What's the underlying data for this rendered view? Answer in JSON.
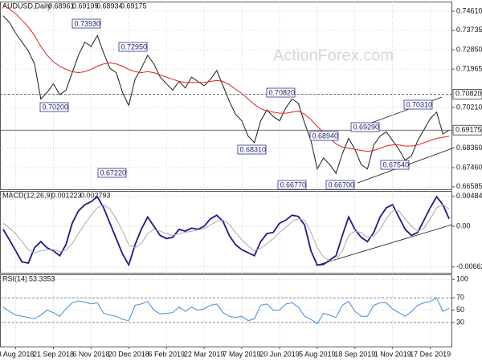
{
  "chart_data": [
    {
      "type": "line",
      "title": "AUDUSD,Daily",
      "ohlc_labels": [
        "0.68961",
        "0.69199",
        "0.68934",
        "0.69175"
      ],
      "watermark": "ActionForex.com",
      "ylim": [
        0.6647,
        0.7505
      ],
      "yticks": [
        {
          "value": 0.7461,
          "label": "0.74610"
        },
        {
          "value": 0.73735,
          "label": "0.73735"
        },
        {
          "value": 0.7285,
          "label": "0.72850"
        },
        {
          "value": 0.71965,
          "label": "0.71965"
        },
        {
          "value": 0.7021,
          "label": "0.70210"
        },
        {
          "value": 0.6836,
          "label": "0.68360"
        },
        {
          "value": 0.6746,
          "label": "0.67460"
        },
        {
          "value": 0.66585,
          "label": "0.66585"
        }
      ],
      "price_lines": [
        {
          "value": 0.7082,
          "label": "0.70820",
          "style": "dashed"
        },
        {
          "value": 0.69175,
          "label": "0.69175",
          "style": "solid"
        }
      ],
      "annotations": [
        "0.73930",
        "0.72950",
        "0.70200",
        "0.67220",
        "0.68310",
        "0.70820",
        "0.66770",
        "0.68940",
        "0.66700",
        "0.69290",
        "0.67540",
        "0.70310"
      ],
      "series": [
        {
          "name": "Close",
          "color": "#1a1a1a",
          "values": [
            0.744,
            0.741,
            0.736,
            0.732,
            0.728,
            0.722,
            0.706,
            0.709,
            0.713,
            0.708,
            0.71,
            0.718,
            0.726,
            0.732,
            0.73,
            0.735,
            0.727,
            0.72,
            0.718,
            0.709,
            0.703,
            0.715,
            0.72,
            0.726,
            0.722,
            0.716,
            0.713,
            0.71,
            0.714,
            0.711,
            0.716,
            0.714,
            0.712,
            0.715,
            0.719,
            0.712,
            0.705,
            0.699,
            0.696,
            0.689,
            0.686,
            0.696,
            0.701,
            0.698,
            0.696,
            0.702,
            0.706,
            0.704,
            0.695,
            0.687,
            0.674,
            0.679,
            0.676,
            0.672,
            0.681,
            0.688,
            0.683,
            0.676,
            0.674,
            0.685,
            0.689,
            0.691,
            0.687,
            0.683,
            0.678,
            0.68,
            0.687,
            0.692,
            0.697,
            0.7,
            0.69,
            0.6918
          ]
        },
        {
          "name": "MA",
          "color": "#e02020",
          "values": [
            0.749,
            0.747,
            0.745,
            0.742,
            0.739,
            0.735,
            0.73,
            0.726,
            0.723,
            0.721,
            0.7195,
            0.7185,
            0.718,
            0.7185,
            0.7195,
            0.721,
            0.722,
            0.7225,
            0.722,
            0.721,
            0.7195,
            0.7185,
            0.718,
            0.7185,
            0.718,
            0.717,
            0.716,
            0.715,
            0.714,
            0.7135,
            0.7135,
            0.7135,
            0.7135,
            0.714,
            0.7145,
            0.714,
            0.7125,
            0.7105,
            0.7085,
            0.706,
            0.7035,
            0.7015,
            0.7005,
            0.7,
            0.6995,
            0.6995,
            0.7,
            0.7005,
            0.699,
            0.6965,
            0.6935,
            0.6905,
            0.688,
            0.6855,
            0.684,
            0.6835,
            0.683,
            0.6825,
            0.682,
            0.6825,
            0.6835,
            0.6845,
            0.685,
            0.685,
            0.6845,
            0.6845,
            0.685,
            0.686,
            0.687,
            0.688,
            0.6885,
            0.689
          ]
        }
      ]
    },
    {
      "type": "line",
      "title": "MACD(12,26,9)",
      "value_text": [
        "0.001223",
        "0.002793"
      ],
      "ylim": [
        -0.00756,
        0.00574
      ],
      "yticks": [
        0.004847,
        {
          "value": 0,
          "label": "0.00"
        },
        -0.006624
      ],
      "series": [
        {
          "name": "MACD",
          "color": "#1a1a8c",
          "values": [
            -0.0005,
            -0.0022,
            -0.004,
            -0.0058,
            -0.006,
            -0.0035,
            -0.0025,
            -0.0035,
            -0.004,
            -0.0048,
            -0.003,
            0.0005,
            0.0025,
            0.0035,
            0.004,
            0.0048,
            0.003,
            0.0005,
            -0.002,
            -0.0045,
            -0.0063,
            -0.003,
            -0.0005,
            0.0015,
            0,
            -0.0015,
            -0.002,
            -0.0018,
            -0.0005,
            -0.0008,
            -0.0003,
            -0.0005,
            0,
            0.0012,
            0.0018,
            0.0008,
            -0.0015,
            -0.003,
            -0.0038,
            -0.0043,
            -0.0048,
            -0.0025,
            -0.0012,
            -0.001,
            0.0005,
            0.001,
            0.0018,
            0.0016,
            0.0002,
            -0.004,
            -0.0063,
            -0.0062,
            -0.0055,
            -0.0048,
            -0.0015,
            0.0015,
            -0.0005,
            -0.0018,
            -0.0025,
            -0.001,
            0.0015,
            0.003,
            0.0035,
            0.0015,
            -0.0005,
            -0.0015,
            -0.001,
            0.001,
            0.003,
            0.0048,
            0.0035,
            0.0012
          ]
        },
        {
          "name": "Signal",
          "color": "#aaaaaa",
          "values": [
            0.0005,
            -0.0003,
            -0.0012,
            -0.0025,
            -0.0038,
            -0.0043,
            -0.004,
            -0.0038,
            -0.0038,
            -0.0041,
            -0.0039,
            -0.0028,
            -0.0012,
            0.0004,
            0.0018,
            0.003,
            0.0035,
            0.0028,
            0.0012,
            -0.0008,
            -0.003,
            -0.0035,
            -0.0028,
            -0.0012,
            -0.0005,
            -0.0008,
            -0.0012,
            -0.0015,
            -0.0012,
            -0.001,
            -0.0008,
            -0.0006,
            -0.0004,
            0.0002,
            0.0008,
            0.001,
            0.0003,
            -0.001,
            -0.0022,
            -0.0032,
            -0.004,
            -0.0036,
            -0.0028,
            -0.002,
            -0.001,
            -0.0002,
            0.0008,
            0.0012,
            0.001,
            -0.001,
            -0.0035,
            -0.005,
            -0.0056,
            -0.0055,
            -0.004,
            -0.0015,
            -0.0008,
            -0.001,
            -0.0018,
            -0.0016,
            -0.0005,
            0.0012,
            0.0025,
            0.0025,
            0.0012,
            0,
            -0.0008,
            -0.0003,
            0.0012,
            0.003,
            0.0035,
            0.0028
          ]
        }
      ]
    },
    {
      "type": "line",
      "title": "RSI(14)",
      "value_text": [
        "53.3353"
      ],
      "ylim": [
        -9,
        108
      ],
      "yticks": [
        100,
        70,
        50,
        30
      ],
      "dashed_levels": [
        70,
        30
      ],
      "categories": [
        null,
        null,
        "8 Aug 2018",
        null,
        null,
        null,
        null,
        null,
        "21 Sep 2018",
        null,
        null,
        null,
        null,
        null,
        "6 Nov 2018",
        null,
        null,
        null,
        null,
        null,
        "20 Dec 2018",
        null,
        null,
        null,
        null,
        null,
        "6 Feb 2019",
        null,
        null,
        null,
        null,
        null,
        "22 Mar 2019",
        null,
        null,
        null,
        null,
        null,
        "7 May 2019",
        null,
        null,
        null,
        null,
        null,
        "20 Jun 2019",
        null,
        null,
        null,
        null,
        null,
        "5 Aug 2019",
        null,
        null,
        null,
        null,
        null,
        "18 Sep 2019",
        null,
        null,
        null,
        null,
        null,
        "1 Nov 2019",
        null,
        null,
        null,
        null,
        null,
        "17 Dec 2019",
        null,
        null,
        null
      ],
      "series": [
        {
          "name": "RSI",
          "color": "#3c8cdc",
          "values": [
            55,
            48,
            42,
            40,
            38,
            36,
            42,
            50,
            46,
            40,
            52,
            62,
            65,
            63,
            60,
            62,
            45,
            42,
            40,
            35,
            33,
            58,
            60,
            64,
            50,
            44,
            45,
            46,
            55,
            48,
            55,
            50,
            52,
            58,
            60,
            46,
            40,
            38,
            40,
            33,
            36,
            58,
            60,
            50,
            50,
            60,
            62,
            55,
            40,
            35,
            28,
            45,
            42,
            38,
            58,
            64,
            48,
            40,
            40,
            58,
            62,
            62,
            52,
            46,
            40,
            48,
            58,
            62,
            64,
            70,
            48,
            53
          ]
        }
      ]
    }
  ]
}
